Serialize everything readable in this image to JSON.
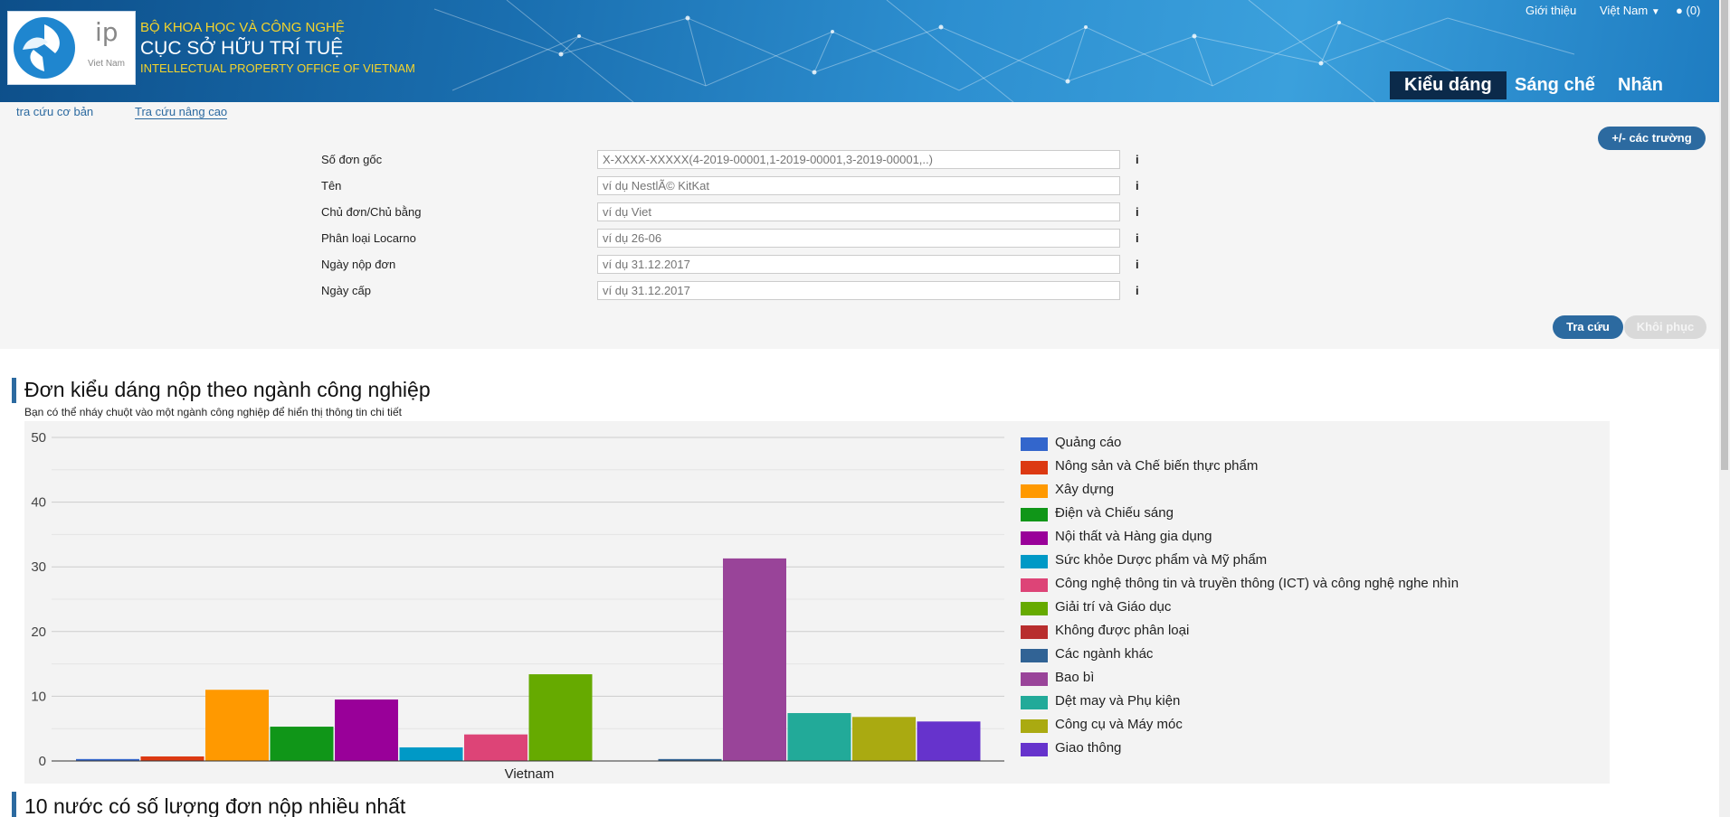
{
  "header": {
    "logo_text": "ip",
    "logo_country": "Viet Nam",
    "org_line1": "BỘ KHOA HỌC VÀ CÔNG NGHỆ",
    "org_line2": "CỤC SỞ HỮU TRÍ TUỆ",
    "org_line3": "INTELLECTUAL PROPERTY OFFICE OF VIETNAM",
    "intro_link": "Giới thiệu",
    "language": "Việt Nam",
    "cart": "(0)",
    "nav": [
      "Kiểu dáng",
      "Sáng chế",
      "Nhãn hiệu"
    ]
  },
  "search": {
    "tab_basic": "tra cứu cơ bản",
    "tab_advanced": "Tra cứu nâng cao",
    "fields_button": "+/- các trường",
    "fields": [
      {
        "label": "Số đơn gốc",
        "placeholder": "X-XXXX-XXXXX(4-2019-00001,1-2019-00001,3-2019-00001,..)"
      },
      {
        "label": "Tên",
        "placeholder": "ví dụ NestlÃ© KitKat"
      },
      {
        "label": "Chủ đơn/Chủ bằng",
        "placeholder": "ví dụ Viet"
      },
      {
        "label": "Phân loại Locarno",
        "placeholder": "ví dụ 26-06"
      },
      {
        "label": "Ngày nộp đơn",
        "placeholder": "ví dụ 31.12.2017"
      },
      {
        "label": "Ngày cấp",
        "placeholder": "ví dụ 31.12.2017"
      }
    ],
    "info_glyph": "i",
    "search_button": "Tra cứu",
    "reset_button": "Khôi phục"
  },
  "section1": {
    "title": "Đơn kiểu dáng nộp theo ngành công nghiệp",
    "subtitle": "Bạn có thể nháy chuột vào một ngành công nghiệp để hiển thị thông tin chi tiết"
  },
  "section2": {
    "title": "10 nước có số lượng đơn nộp nhiều nhất"
  },
  "chart_data": {
    "type": "bar",
    "categories": [
      "Vietnam"
    ],
    "ylim": [
      0,
      50
    ],
    "yticks": [
      0,
      10,
      20,
      30,
      40,
      50
    ],
    "grid": true,
    "legend_position": "right",
    "series": [
      {
        "name": "Quảng cáo",
        "value": 0.3,
        "color": "#3366cc"
      },
      {
        "name": "Nông sản và Chế biến thực phẩm",
        "value": 0.7,
        "color": "#dc3912"
      },
      {
        "name": "Xây dựng",
        "value": 11,
        "color": "#ff9900"
      },
      {
        "name": "Điện và Chiếu sáng",
        "value": 5.3,
        "color": "#109618"
      },
      {
        "name": "Nội thất và Hàng gia dụng",
        "value": 9.5,
        "color": "#990099"
      },
      {
        "name": "Sức khỏe Dược phẩm và Mỹ phẩm",
        "value": 2.1,
        "color": "#0099c6"
      },
      {
        "name": "Công nghệ thông tin và truyền thông (ICT) và công nghệ nghe nhìn",
        "value": 4.1,
        "color": "#dd4477"
      },
      {
        "name": "Giải trí và Giáo dục",
        "value": 13.4,
        "color": "#66aa00"
      },
      {
        "name": "Không được phân loại",
        "value": 0,
        "color": "#b82e2e"
      },
      {
        "name": "Các ngành khác",
        "value": 0.3,
        "color": "#316395"
      },
      {
        "name": "Bao bì",
        "value": 31.3,
        "color": "#994499"
      },
      {
        "name": "Dệt may và Phụ kiện",
        "value": 7.4,
        "color": "#22aa99"
      },
      {
        "name": "Công cụ và Máy móc",
        "value": 6.8,
        "color": "#aaaa11"
      },
      {
        "name": "Giao thông",
        "value": 6.1,
        "color": "#6633cc"
      }
    ]
  }
}
